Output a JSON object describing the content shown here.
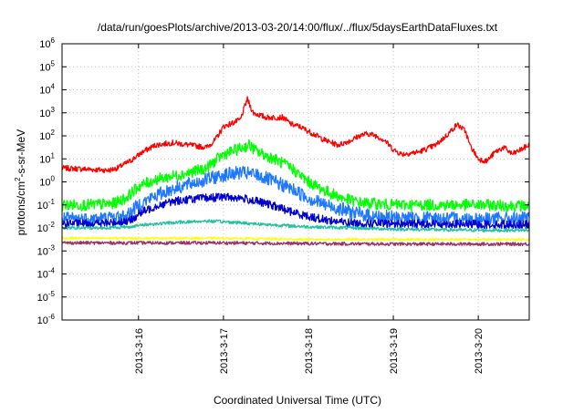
{
  "chart_data": {
    "type": "line",
    "title": "/data/run/goesPlots/archive/2013-03-20/14:00/flux/../flux/5daysEarthDataFluxes.txt",
    "xlabel": "Coordinated Universal Time (UTC)",
    "ylabel_parts": {
      "base": "protons/cm",
      "sup": "2",
      "rest": "-s-sr-MeV"
    },
    "log_y": true,
    "ylim_exponent": [
      -6,
      6
    ],
    "y_ticks": [
      {
        "base": "10",
        "exp": "-6"
      },
      {
        "base": "10",
        "exp": "-5"
      },
      {
        "base": "10",
        "exp": "-4"
      },
      {
        "base": "10",
        "exp": "-3"
      },
      {
        "base": "10",
        "exp": "-2"
      },
      {
        "base": "10",
        "exp": "-1"
      },
      {
        "base": "10",
        "exp": "0"
      },
      {
        "base": "10",
        "exp": "1"
      },
      {
        "base": "10",
        "exp": "2"
      },
      {
        "base": "10",
        "exp": "3"
      },
      {
        "base": "10",
        "exp": "4"
      },
      {
        "base": "10",
        "exp": "5"
      },
      {
        "base": "10",
        "exp": "6"
      }
    ],
    "xlim_days": [
      15.1,
      20.6
    ],
    "x_ticks": [
      {
        "day": 16,
        "label": "2013-3-16"
      },
      {
        "day": 17,
        "label": "2013-3-17"
      },
      {
        "day": 18,
        "label": "2013-3-18"
      },
      {
        "day": 19,
        "label": "2013-3-19"
      },
      {
        "day": 20,
        "label": "2013-3-20"
      }
    ],
    "grid": true,
    "series": [
      {
        "color": "#ff0000",
        "noise": 0.12,
        "points": [
          [
            15.1,
            0.6
          ],
          [
            15.4,
            0.55
          ],
          [
            15.65,
            0.5
          ],
          [
            15.75,
            0.6
          ],
          [
            15.9,
            0.9
          ],
          [
            16.05,
            1.3
          ],
          [
            16.2,
            1.6
          ],
          [
            16.4,
            1.7
          ],
          [
            16.6,
            1.6
          ],
          [
            16.8,
            1.5
          ],
          [
            16.9,
            1.8
          ],
          [
            17.0,
            2.4
          ],
          [
            17.2,
            2.7
          ],
          [
            17.28,
            3.6
          ],
          [
            17.35,
            3.0
          ],
          [
            17.5,
            2.8
          ],
          [
            17.7,
            2.8
          ],
          [
            17.8,
            2.5
          ],
          [
            17.9,
            2.4
          ],
          [
            18.0,
            2.2
          ],
          [
            18.1,
            2.0
          ],
          [
            18.2,
            1.8
          ],
          [
            18.35,
            1.6
          ],
          [
            18.5,
            1.8
          ],
          [
            18.6,
            2.0
          ],
          [
            18.7,
            2.1
          ],
          [
            18.8,
            2.0
          ],
          [
            18.9,
            1.8
          ],
          [
            19.0,
            1.4
          ],
          [
            19.1,
            1.2
          ],
          [
            19.3,
            1.3
          ],
          [
            19.5,
            1.6
          ],
          [
            19.65,
            2.1
          ],
          [
            19.75,
            2.5
          ],
          [
            19.85,
            2.2
          ],
          [
            19.9,
            1.6
          ],
          [
            20.0,
            1.0
          ],
          [
            20.1,
            0.9
          ],
          [
            20.2,
            1.3
          ],
          [
            20.3,
            1.5
          ],
          [
            20.4,
            1.2
          ],
          [
            20.5,
            1.4
          ],
          [
            20.6,
            1.6
          ]
        ]
      },
      {
        "color": "#00ff00",
        "noise": 0.25,
        "points": [
          [
            15.1,
            -1.0
          ],
          [
            15.4,
            -1.0
          ],
          [
            15.7,
            -0.95
          ],
          [
            15.85,
            -0.7
          ],
          [
            16.0,
            -0.2
          ],
          [
            16.2,
            0.1
          ],
          [
            16.4,
            0.25
          ],
          [
            16.6,
            0.4
          ],
          [
            16.8,
            0.6
          ],
          [
            17.0,
            1.2
          ],
          [
            17.2,
            1.45
          ],
          [
            17.3,
            1.6
          ],
          [
            17.4,
            1.3
          ],
          [
            17.6,
            1.0
          ],
          [
            17.8,
            0.6
          ],
          [
            18.0,
            0.0
          ],
          [
            18.2,
            -0.4
          ],
          [
            18.4,
            -0.7
          ],
          [
            18.6,
            -0.9
          ],
          [
            18.8,
            -0.95
          ],
          [
            19.0,
            -1.0
          ],
          [
            19.5,
            -1.0
          ],
          [
            20.0,
            -1.0
          ],
          [
            20.6,
            -1.05
          ]
        ]
      },
      {
        "color": "#1e78ff",
        "noise": 0.3,
        "points": [
          [
            15.1,
            -1.6
          ],
          [
            15.5,
            -1.6
          ],
          [
            15.85,
            -1.5
          ],
          [
            16.0,
            -1.0
          ],
          [
            16.2,
            -0.6
          ],
          [
            16.4,
            -0.3
          ],
          [
            16.6,
            -0.1
          ],
          [
            16.8,
            0.1
          ],
          [
            17.0,
            0.3
          ],
          [
            17.2,
            0.4
          ],
          [
            17.4,
            0.3
          ],
          [
            17.6,
            0.0
          ],
          [
            17.8,
            -0.3
          ],
          [
            18.0,
            -0.7
          ],
          [
            18.2,
            -1.0
          ],
          [
            18.4,
            -1.2
          ],
          [
            18.6,
            -1.4
          ],
          [
            18.8,
            -1.5
          ],
          [
            19.0,
            -1.55
          ],
          [
            19.5,
            -1.6
          ],
          [
            20.0,
            -1.6
          ],
          [
            20.6,
            -1.6
          ]
        ]
      },
      {
        "color": "#0000d0",
        "noise": 0.18,
        "points": [
          [
            15.1,
            -1.8
          ],
          [
            15.6,
            -1.8
          ],
          [
            15.9,
            -1.7
          ],
          [
            16.0,
            -1.4
          ],
          [
            16.2,
            -1.05
          ],
          [
            16.4,
            -0.85
          ],
          [
            16.6,
            -0.75
          ],
          [
            16.8,
            -0.7
          ],
          [
            17.0,
            -0.65
          ],
          [
            17.2,
            -0.7
          ],
          [
            17.4,
            -0.85
          ],
          [
            17.6,
            -1.05
          ],
          [
            17.8,
            -1.3
          ],
          [
            18.0,
            -1.5
          ],
          [
            18.2,
            -1.65
          ],
          [
            18.4,
            -1.75
          ],
          [
            18.6,
            -1.8
          ],
          [
            19.0,
            -1.82
          ],
          [
            19.5,
            -1.82
          ],
          [
            20.0,
            -1.85
          ],
          [
            20.6,
            -1.85
          ]
        ]
      },
      {
        "color": "#20c0a0",
        "noise": 0.07,
        "points": [
          [
            15.1,
            -2.0
          ],
          [
            15.6,
            -2.0
          ],
          [
            15.9,
            -1.95
          ],
          [
            16.1,
            -1.85
          ],
          [
            16.5,
            -1.75
          ],
          [
            16.8,
            -1.7
          ],
          [
            17.1,
            -1.75
          ],
          [
            17.5,
            -1.85
          ],
          [
            18.0,
            -1.95
          ],
          [
            18.5,
            -2.0
          ],
          [
            19.0,
            -2.05
          ],
          [
            20.0,
            -2.1
          ],
          [
            20.6,
            -2.1
          ]
        ]
      },
      {
        "color": "#ffff00",
        "noise": 0.05,
        "points": [
          [
            15.1,
            -2.45
          ],
          [
            16.0,
            -2.45
          ],
          [
            17.0,
            -2.45
          ],
          [
            18.0,
            -2.5
          ],
          [
            19.0,
            -2.5
          ],
          [
            20.0,
            -2.5
          ],
          [
            20.6,
            -2.5
          ]
        ]
      },
      {
        "color": "#993366",
        "noise": 0.07,
        "points": [
          [
            15.1,
            -2.65
          ],
          [
            16.0,
            -2.65
          ],
          [
            17.0,
            -2.65
          ],
          [
            18.0,
            -2.68
          ],
          [
            19.0,
            -2.7
          ],
          [
            20.0,
            -2.7
          ],
          [
            20.6,
            -2.7
          ]
        ]
      }
    ]
  }
}
